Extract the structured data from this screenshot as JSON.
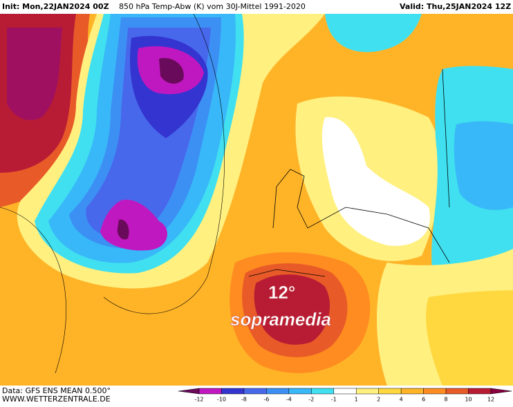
{
  "header": {
    "init": "Init: Mon,22JAN2024 00Z",
    "title": "850 hPa Temp-Abw (K) vom 30J-Mittel 1991-2020",
    "valid": "Valid: Thu,25JAN2024 12Z"
  },
  "annotation": {
    "value": "12°",
    "text": "sopramedia"
  },
  "footer": {
    "data": "Data: GFS ENS MEAN 0.500°",
    "source": "WWW.WETTERZENTRALE.DE"
  },
  "colorbar": {
    "levels": [
      -12,
      -10,
      -8,
      -6,
      -4,
      -2,
      -1,
      1,
      2,
      4,
      6,
      8,
      10,
      12
    ],
    "colors": [
      "#6a0a5a",
      "#c018c0",
      "#3434d0",
      "#4868ec",
      "#3c90f4",
      "#38b8f8",
      "#40e0f0",
      "#ffffff",
      "#fff080",
      "#ffd840",
      "#ffb428",
      "#ff8c20",
      "#e85a28",
      "#b81c34",
      "#880040"
    ]
  }
}
